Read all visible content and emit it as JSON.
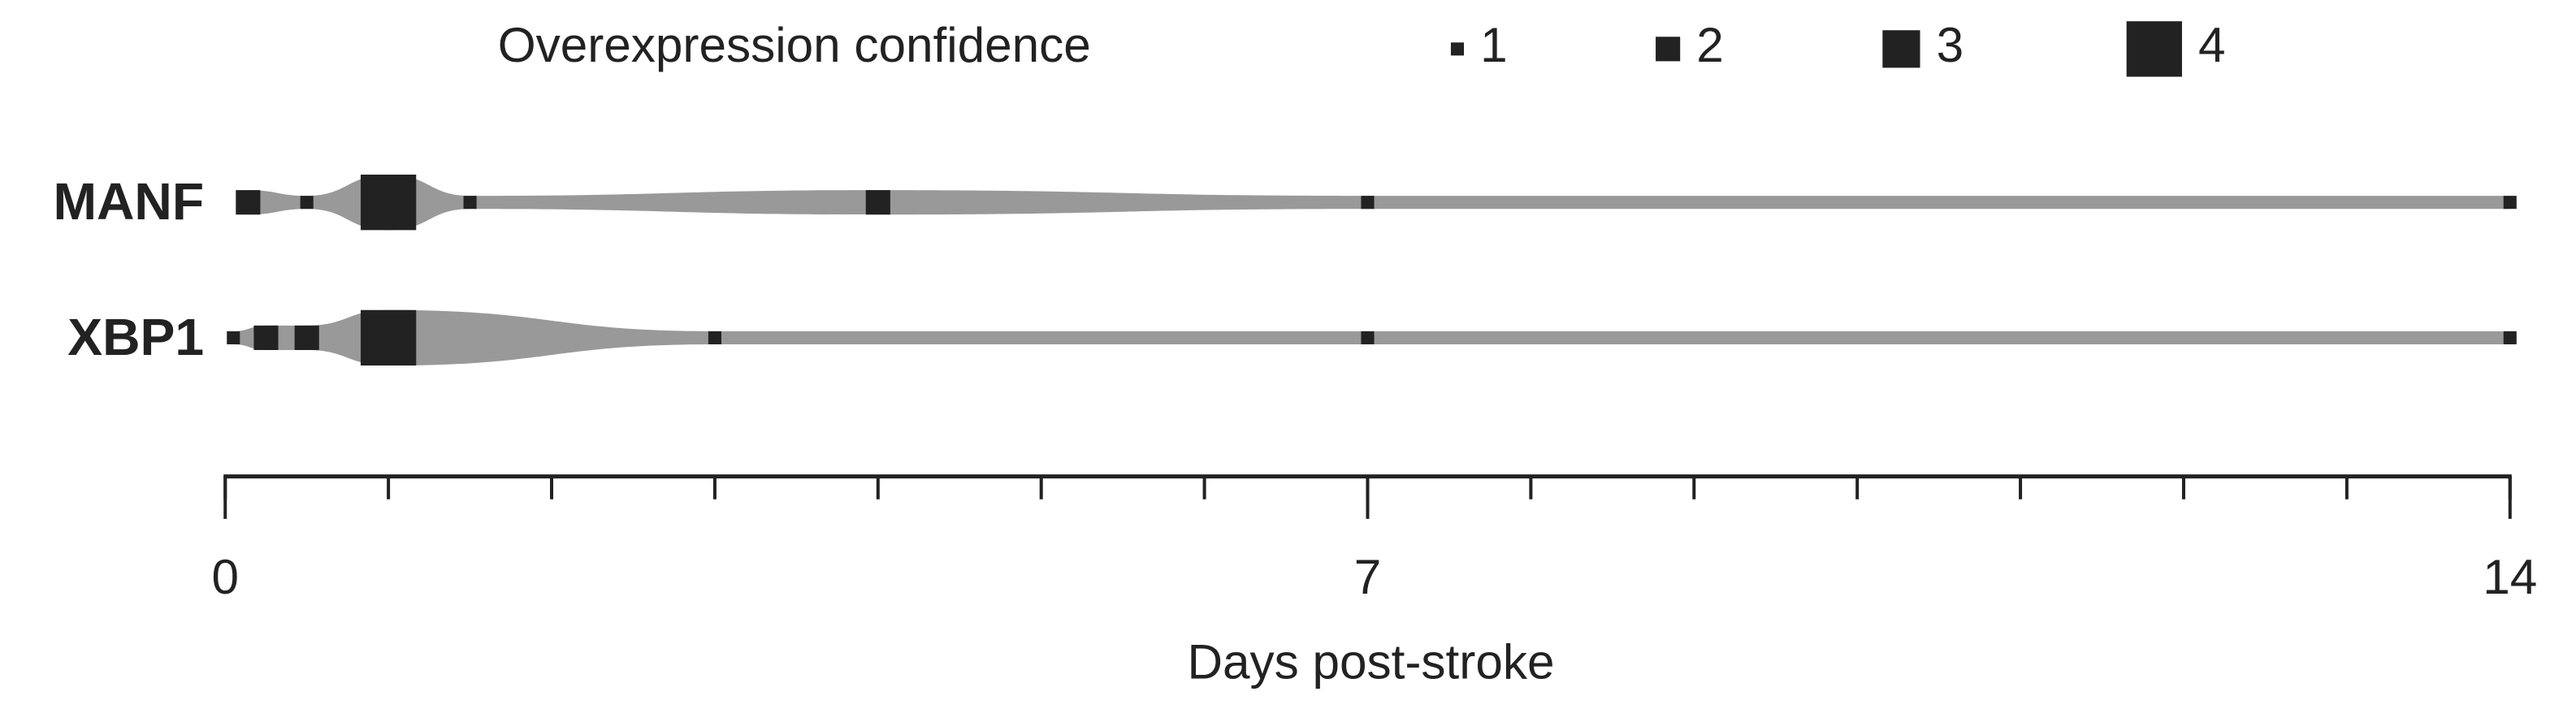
{
  "chart_data": {
    "type": "confidence-strip",
    "legend": {
      "title": "Overexpression confidence",
      "levels": [
        1,
        2,
        3,
        4
      ]
    },
    "series": [
      {
        "name": "MANF",
        "x": [
          0.14,
          0.5,
          1,
          1.5,
          4,
          7,
          14
        ],
        "values": [
          2,
          1,
          4,
          1,
          2,
          1,
          1
        ]
      },
      {
        "name": "XBP1",
        "x": [
          0.05,
          0.25,
          0.5,
          1,
          3,
          7,
          14
        ],
        "values": [
          1,
          2,
          2,
          4,
          1,
          1,
          1
        ]
      }
    ],
    "band_color": "#999999",
    "marker_color": "#222222",
    "xlim": [
      0,
      14
    ],
    "xticks": [
      0,
      7,
      14
    ],
    "xminor_ticks": [
      0,
      1,
      2,
      3,
      4,
      5,
      6,
      7,
      8,
      9,
      10,
      11,
      12,
      13,
      14
    ],
    "xlabel": "Days post-stroke"
  }
}
